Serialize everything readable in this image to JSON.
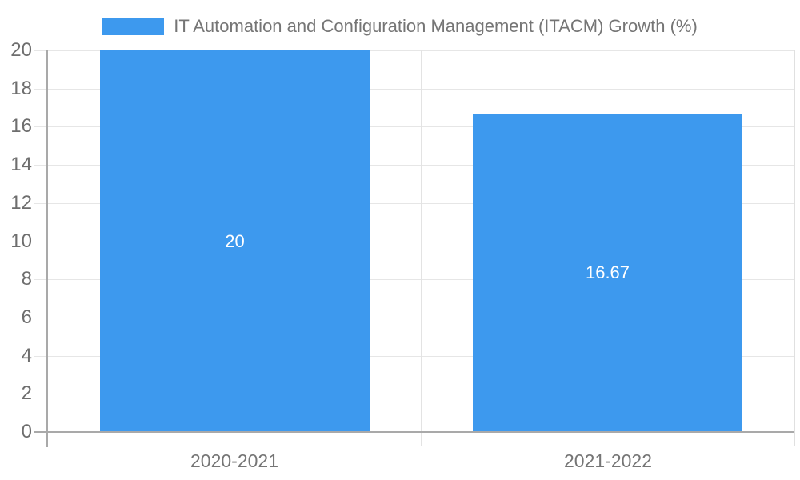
{
  "chart_data": {
    "type": "bar",
    "title": "",
    "legend_label": "IT Automation and Configuration Management (ITACM) Growth (%)",
    "legend_position": "top",
    "categories": [
      "2020-2021",
      "2021-2022"
    ],
    "series": [
      {
        "name": "IT Automation and Configuration Management (ITACM) Growth (%)",
        "values": [
          20,
          16.67
        ],
        "data_labels": [
          "20",
          "16.67"
        ],
        "color": "#3d99ee"
      }
    ],
    "xlabel": "",
    "ylabel": "",
    "ylim": [
      0,
      20
    ],
    "yticks": [
      0,
      2,
      4,
      6,
      8,
      10,
      12,
      14,
      16,
      18,
      20
    ],
    "grid": true,
    "colors": {
      "bar": "#3d99ee",
      "grid_line": "#e6e6e6",
      "divider_line": "#e3e3e3",
      "axis_line": "#a9a9a9",
      "plot_border": "#e0e0e0",
      "tick_label": "#6e6e6e",
      "category_label": "#757575",
      "legend_text": "#757575",
      "bar_label": "#ffffff",
      "background": "#ffffff"
    }
  }
}
